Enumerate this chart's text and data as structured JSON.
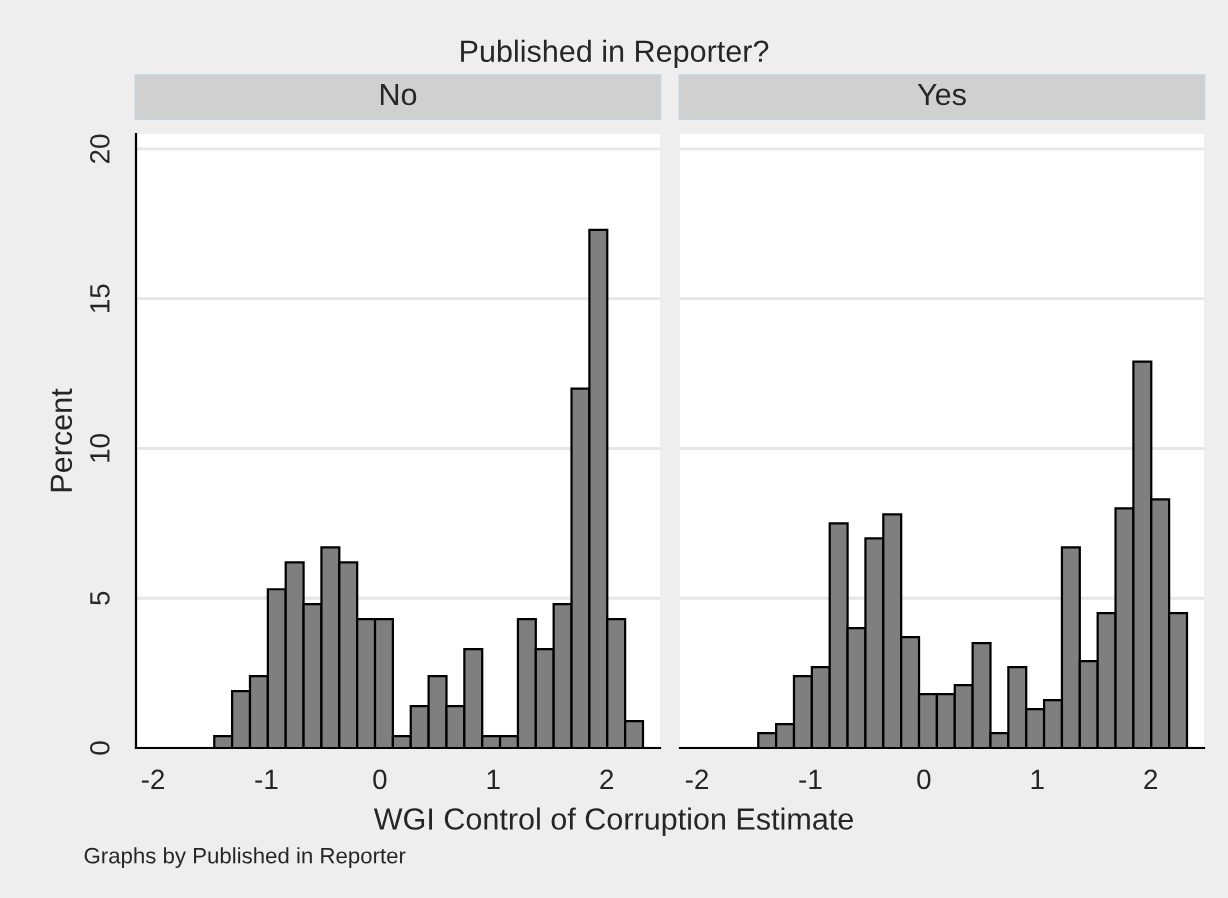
{
  "chart_data": [
    {
      "type": "histogram",
      "title": "No",
      "ylabel": "Percent",
      "xlabel": "WGI Control of Corruption Estimate",
      "annotations": [
        "Published in Reporter?",
        "Graphs by Published in Reporter"
      ],
      "bins": [
        -1.46,
        -1.3025,
        -1.145,
        -0.9875,
        -0.83,
        -0.6725,
        -0.515,
        -0.3575,
        -0.2,
        -0.0425,
        0.115,
        0.2725,
        0.43,
        0.5875,
        0.745,
        0.9025,
        1.06,
        1.2175,
        1.375,
        1.5325,
        1.69,
        1.8475,
        2.005,
        2.1625,
        2.32
      ],
      "values": [
        0.4,
        1.9,
        2.4,
        5.3,
        6.2,
        4.8,
        6.7,
        6.2,
        4.3,
        4.3,
        0.4,
        1.4,
        2.4,
        1.4,
        3.3,
        0.4,
        0.4,
        4.3,
        3.3,
        4.8,
        12.0,
        17.3,
        4.3,
        0.9
      ],
      "color": "#7f7f7f",
      "xlim": [
        -2.15,
        2.47
      ],
      "ylim": [
        0,
        20.5
      ],
      "xticks": [
        -2,
        -1,
        0,
        1,
        2
      ],
      "yticks": [
        0,
        5,
        10,
        15,
        20
      ],
      "grid": "y"
    },
    {
      "type": "histogram",
      "title": "Yes",
      "bins": [
        -1.46,
        -1.3025,
        -1.145,
        -0.9875,
        -0.83,
        -0.6725,
        -0.515,
        -0.3575,
        -0.2,
        -0.0425,
        0.115,
        0.2725,
        0.43,
        0.5875,
        0.745,
        0.9025,
        1.06,
        1.2175,
        1.375,
        1.5325,
        1.69,
        1.8475,
        2.005,
        2.1625,
        2.32
      ],
      "values": [
        0.5,
        0.8,
        2.4,
        2.7,
        7.5,
        4.0,
        7.0,
        7.8,
        3.7,
        1.8,
        1.8,
        2.1,
        3.5,
        0.5,
        2.7,
        1.3,
        1.6,
        6.7,
        2.9,
        4.5,
        8.0,
        12.9,
        8.3,
        4.5
      ],
      "color": "#7f7f7f",
      "xlim": [
        -2.15,
        2.47
      ],
      "ylim": [
        0,
        20.5
      ],
      "xticks": [
        -2,
        -1,
        0,
        1,
        2
      ],
      "yticks": [
        0,
        5,
        10,
        15,
        20
      ],
      "grid": "y",
      "tick_labels": "x"
    }
  ]
}
